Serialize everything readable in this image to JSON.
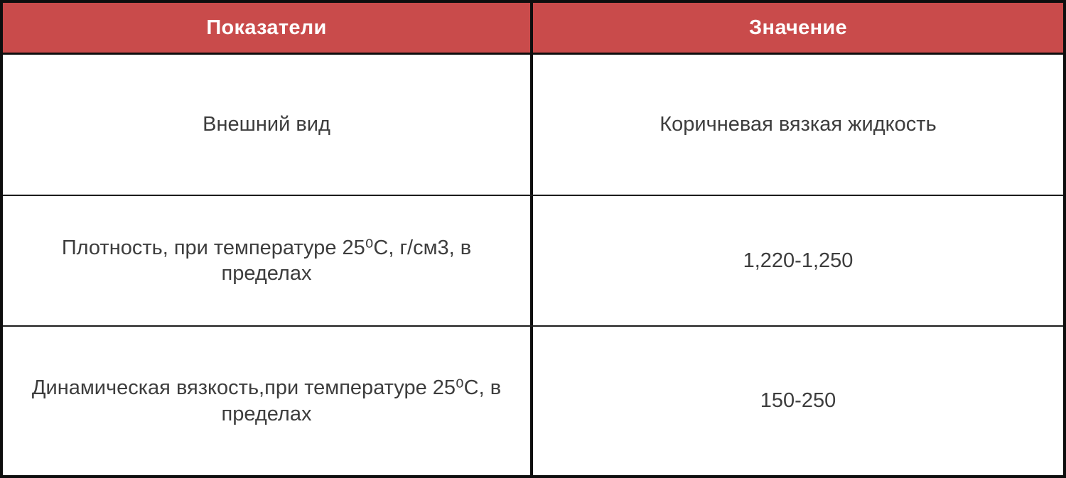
{
  "table": {
    "columns": [
      {
        "label": "Показатели"
      },
      {
        "label": "Значение"
      }
    ],
    "rows": [
      {
        "indicator": "Внешний вид",
        "value": "Коричневая вязкая жидкость"
      },
      {
        "indicator": "Плотность, при температуре 25⁰С, г/см3, в пределах",
        "value": "1,220-1,250"
      },
      {
        "indicator": "Динамическая вязкость,при температуре 25⁰С, в пределах",
        "value": "150-250"
      }
    ],
    "colors": {
      "header_bg": "#c94b4b",
      "header_text": "#ffffff",
      "border": "#0e0e0e",
      "cell_text": "#3d3d3d"
    }
  }
}
